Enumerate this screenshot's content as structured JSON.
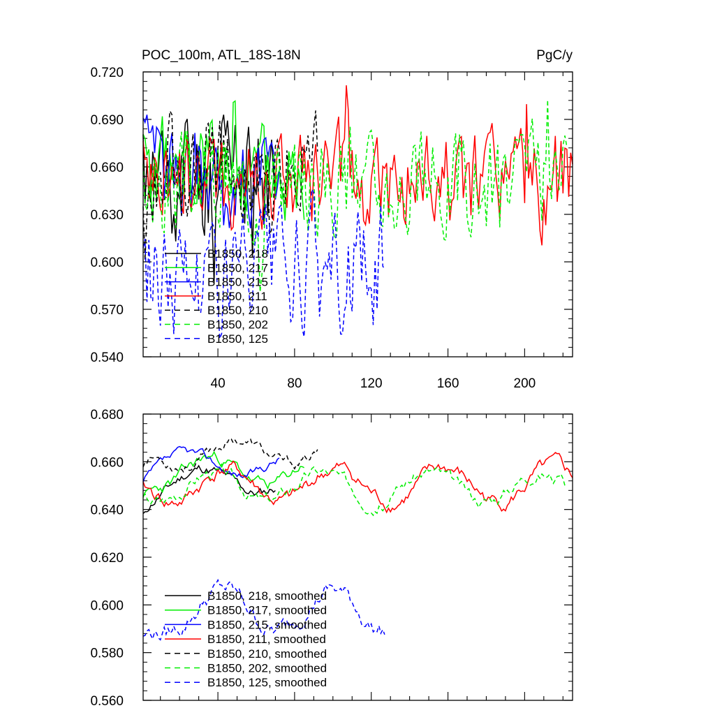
{
  "chart_data": [
    {
      "type": "line",
      "title": "POC_100m, ATL_18S-18N",
      "units": "PgC/y",
      "xlim": [
        1,
        225
      ],
      "ylim": [
        0.54,
        0.72
      ],
      "xticks": [
        40,
        80,
        120,
        160,
        200
      ],
      "yticks": [
        "0.540",
        "0.570",
        "0.600",
        "0.630",
        "0.660",
        "0.690",
        "0.720"
      ],
      "series": [
        {
          "name": "B1850, 218",
          "color": "#000000",
          "dash": false,
          "length": 70,
          "mean": 0.652,
          "amp": 0.022,
          "seed": 11
        },
        {
          "name": "B1850, 217",
          "color": "#00ee00",
          "dash": false,
          "length": 85,
          "mean": 0.657,
          "amp": 0.017,
          "seed": 23
        },
        {
          "name": "B1850, 215",
          "color": "#0000ff",
          "dash": false,
          "length": 72,
          "mean": 0.655,
          "amp": 0.016,
          "seed": 37
        },
        {
          "name": "B1850, 211",
          "color": "#ff0000",
          "dash": false,
          "length": 225,
          "mean": 0.65,
          "amp": 0.017,
          "seed": 41
        },
        {
          "name": "B1850, 210",
          "color": "#000000",
          "dash": true,
          "length": 92,
          "mean": 0.66,
          "amp": 0.016,
          "seed": 53
        },
        {
          "name": "B1850, 202",
          "color": "#00ee00",
          "dash": true,
          "length": 222,
          "mean": 0.65,
          "amp": 0.017,
          "seed": 67
        },
        {
          "name": "B1850, 125",
          "color": "#0000ff",
          "dash": true,
          "length": 127,
          "mean": 0.593,
          "amp": 0.02,
          "seed": 79
        }
      ]
    },
    {
      "type": "line",
      "title": "",
      "xlim": [
        1,
        225
      ],
      "ylim": [
        0.56,
        0.68
      ],
      "xticks": [],
      "yticks": [
        "0.560",
        "0.580",
        "0.600",
        "0.620",
        "0.640",
        "0.660",
        "0.680"
      ],
      "series": [
        {
          "name": "B1850, 218, smoothed",
          "color": "#000000",
          "dash": false,
          "length": 70,
          "mean": 0.652,
          "amp": 0.006,
          "seed": 11,
          "start": 0.635
        },
        {
          "name": "B1850, 217, smoothed",
          "color": "#00ee00",
          "dash": false,
          "length": 85,
          "mean": 0.656,
          "amp": 0.007,
          "seed": 23,
          "start": 0.642
        },
        {
          "name": "B1850, 215, smoothed",
          "color": "#0000ff",
          "dash": false,
          "length": 72,
          "mean": 0.659,
          "amp": 0.005,
          "seed": 37,
          "start": 0.65
        },
        {
          "name": "B1850, 211, smoothed",
          "color": "#ff0000",
          "dash": false,
          "length": 225,
          "mean": 0.65,
          "amp": 0.008,
          "seed": 41,
          "start": 0.65
        },
        {
          "name": "B1850, 210, smoothed",
          "color": "#000000",
          "dash": true,
          "length": 92,
          "mean": 0.664,
          "amp": 0.006,
          "seed": 53,
          "start": 0.658
        },
        {
          "name": "B1850, 202, smoothed",
          "color": "#00ee00",
          "dash": true,
          "length": 222,
          "mean": 0.65,
          "amp": 0.007,
          "seed": 67,
          "start": 0.645
        },
        {
          "name": "B1850, 125, smoothed",
          "color": "#0000ff",
          "dash": true,
          "length": 127,
          "mean": 0.598,
          "amp": 0.01,
          "seed": 79,
          "start": 0.584
        }
      ]
    }
  ]
}
